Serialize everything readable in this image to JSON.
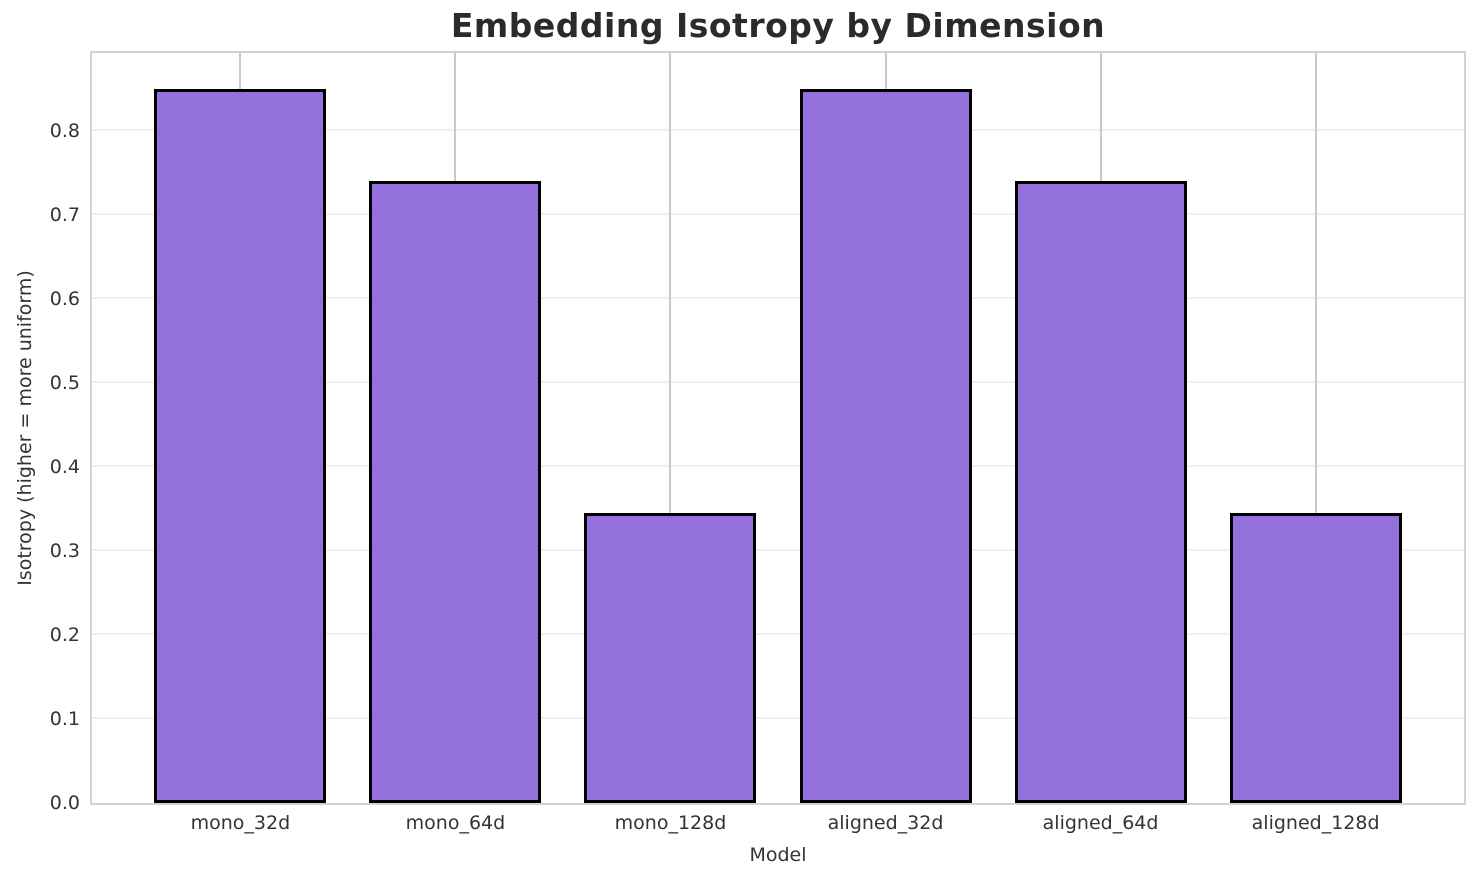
{
  "chart_data": {
    "type": "bar",
    "title": "Embedding Isotropy by Dimension",
    "xlabel": "Model",
    "ylabel": "Isotropy (higher = more uniform)",
    "categories": [
      "mono_32d",
      "mono_64d",
      "mono_128d",
      "aligned_32d",
      "aligned_64d",
      "aligned_128d"
    ],
    "values": [
      0.85,
      0.74,
      0.345,
      0.85,
      0.74,
      0.345
    ],
    "ylim": [
      0,
      0.8925
    ],
    "yticks": [
      0.0,
      0.1,
      0.2,
      0.3,
      0.4,
      0.5,
      0.6,
      0.7,
      0.8
    ],
    "bar_width_fraction": 0.8,
    "grid": "both",
    "legend": "none",
    "colors": {
      "bar_fill": "#9370db",
      "bar_edge": "#000000",
      "grid_horizontal": "#efefef",
      "grid_vertical": "#c9c9c9",
      "spine": "#d2d2d2",
      "title_text": "#2b2b2b",
      "tick_text": "#333333"
    }
  }
}
